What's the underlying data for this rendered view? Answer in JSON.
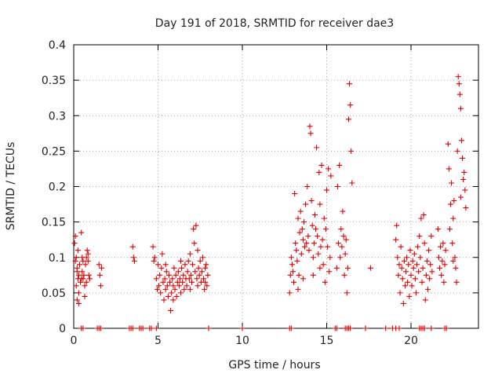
{
  "chart_data": {
    "type": "scatter",
    "title": "Day 191 of 2018, SRMTID for receiver dae3",
    "xlabel": "GPS time / hours",
    "ylabel": "SRMTID / TECUs",
    "xlim": [
      0,
      24
    ],
    "ylim": [
      0,
      0.4
    ],
    "grid": true,
    "marker": "+",
    "color": "#e00000",
    "x_ticks": [
      0,
      5,
      10,
      15,
      20
    ],
    "x_tick_labels": [
      "0",
      "5",
      "10",
      "15",
      "20"
    ],
    "y_ticks": [
      0,
      0.05,
      0.1,
      0.15,
      0.2,
      0.25,
      0.3,
      0.35,
      0.4
    ],
    "y_tick_labels": [
      "0",
      "0.05",
      "0.1",
      "0.15",
      "0.2",
      "0.25",
      "0.3",
      "0.35",
      "0.4"
    ],
    "series": [
      {
        "name": "dae3",
        "points": [
          [
            0.05,
            0.12
          ],
          [
            0.1,
            0.095
          ],
          [
            0.1,
            0.13
          ],
          [
            0.15,
            0.06
          ],
          [
            0.15,
            0.1
          ],
          [
            0.2,
            0.08
          ],
          [
            0.2,
            0.04
          ],
          [
            0.25,
            0.07
          ],
          [
            0.25,
            0.11
          ],
          [
            0.3,
            0.05
          ],
          [
            0.3,
            0.075
          ],
          [
            0.35,
            0.09
          ],
          [
            0.4,
            0.065
          ],
          [
            0.45,
            0.135
          ],
          [
            0.5,
            0.08
          ],
          [
            0.5,
            0.1
          ],
          [
            0.55,
            0.07
          ],
          [
            0.6,
            0.075
          ],
          [
            0.65,
            0.06
          ],
          [
            0.7,
            0.09
          ],
          [
            0.75,
            0.1
          ],
          [
            0.8,
            0.11
          ],
          [
            0.85,
            0.095
          ],
          [
            0.9,
            0.075
          ],
          [
            0.95,
            0.07
          ],
          [
            0.3,
            0.035
          ],
          [
            0.2,
            0.085
          ],
          [
            0.65,
            0.045
          ],
          [
            0.45,
            0.07
          ],
          [
            0.55,
            0.095
          ],
          [
            0.75,
            0.065
          ],
          [
            0.85,
            0.105
          ],
          [
            1.5,
            0.09
          ],
          [
            1.55,
            0.075
          ],
          [
            1.6,
            0.06
          ],
          [
            1.65,
            0.085
          ],
          [
            3.5,
            0.115
          ],
          [
            3.55,
            0.1
          ],
          [
            3.6,
            0.095
          ],
          [
            4.7,
            0.115
          ],
          [
            4.75,
            0.095
          ],
          [
            4.8,
            0.1
          ],
          [
            4.9,
            0.07
          ],
          [
            4.95,
            0.055
          ],
          [
            5.0,
            0.09
          ],
          [
            5.05,
            0.06
          ],
          [
            5.1,
            0.075
          ],
          [
            5.15,
            0.05
          ],
          [
            5.2,
            0.085
          ],
          [
            5.25,
            0.105
          ],
          [
            5.3,
            0.065
          ],
          [
            5.35,
            0.04
          ],
          [
            5.4,
            0.07
          ],
          [
            5.45,
            0.055
          ],
          [
            5.5,
            0.08
          ],
          [
            5.55,
            0.06
          ],
          [
            5.6,
            0.045
          ],
          [
            5.65,
            0.075
          ],
          [
            5.7,
            0.065
          ],
          [
            5.75,
            0.025
          ],
          [
            5.8,
            0.05
          ],
          [
            5.85,
            0.07
          ],
          [
            5.9,
            0.06
          ],
          [
            5.95,
            0.085
          ],
          [
            6.0,
            0.055
          ],
          [
            6.05,
            0.075
          ],
          [
            6.1,
            0.045
          ],
          [
            6.15,
            0.065
          ],
          [
            6.2,
            0.08
          ],
          [
            6.25,
            0.06
          ],
          [
            6.3,
            0.07
          ],
          [
            6.35,
            0.05
          ],
          [
            6.4,
            0.085
          ],
          [
            6.45,
            0.065
          ],
          [
            6.5,
            0.075
          ],
          [
            6.55,
            0.055
          ],
          [
            6.6,
            0.09
          ],
          [
            6.65,
            0.07
          ],
          [
            6.7,
            0.06
          ],
          [
            6.75,
            0.08
          ],
          [
            6.8,
            0.095
          ],
          [
            6.85,
            0.07
          ],
          [
            6.9,
            0.105
          ],
          [
            6.95,
            0.075
          ],
          [
            7.0,
            0.065
          ],
          [
            7.05,
            0.09
          ],
          [
            7.1,
            0.14
          ],
          [
            7.15,
            0.12
          ],
          [
            7.2,
            0.08
          ],
          [
            7.25,
            0.145
          ],
          [
            7.3,
            0.07
          ],
          [
            7.35,
            0.06
          ],
          [
            7.4,
            0.085
          ],
          [
            7.45,
            0.075
          ],
          [
            7.5,
            0.095
          ],
          [
            7.55,
            0.065
          ],
          [
            7.6,
            0.08
          ],
          [
            7.65,
            0.1
          ],
          [
            7.7,
            0.07
          ],
          [
            7.75,
            0.055
          ],
          [
            7.8,
            0.085
          ],
          [
            7.85,
            0.09
          ],
          [
            7.9,
            0.06
          ],
          [
            7.95,
            0.075
          ],
          [
            5.45,
            0.09
          ],
          [
            5.9,
            0.04
          ],
          [
            6.35,
            0.095
          ],
          [
            6.9,
            0.055
          ],
          [
            7.35,
            0.11
          ],
          [
            7.8,
            0.065
          ],
          [
            12.8,
            0.05
          ],
          [
            12.85,
            0.075
          ],
          [
            12.9,
            0.1
          ],
          [
            12.95,
            0.09
          ],
          [
            13.0,
            0.08
          ],
          [
            13.05,
            0.065
          ],
          [
            13.1,
            0.19
          ],
          [
            13.15,
            0.12
          ],
          [
            13.2,
            0.11
          ],
          [
            13.25,
            0.095
          ],
          [
            13.3,
            0.155
          ],
          [
            13.35,
            0.075
          ],
          [
            13.4,
            0.135
          ],
          [
            13.45,
            0.165
          ],
          [
            13.5,
            0.105
          ],
          [
            13.55,
            0.14
          ],
          [
            13.6,
            0.125
          ],
          [
            13.65,
            0.15
          ],
          [
            13.7,
            0.115
          ],
          [
            13.75,
            0.175
          ],
          [
            13.8,
            0.12
          ],
          [
            13.85,
            0.2
          ],
          [
            13.9,
            0.13
          ],
          [
            13.95,
            0.11
          ],
          [
            14.0,
            0.285
          ],
          [
            14.05,
            0.275
          ],
          [
            14.1,
            0.18
          ],
          [
            14.15,
            0.145
          ],
          [
            14.2,
            0.1
          ],
          [
            14.25,
            0.12
          ],
          [
            14.3,
            0.16
          ],
          [
            14.35,
            0.14
          ],
          [
            14.4,
            0.255
          ],
          [
            14.45,
            0.13
          ],
          [
            14.5,
            0.105
          ],
          [
            14.55,
            0.22
          ],
          [
            14.6,
            0.175
          ],
          [
            14.65,
            0.115
          ],
          [
            14.7,
            0.23
          ],
          [
            14.75,
            0.125
          ],
          [
            14.8,
            0.09
          ],
          [
            14.85,
            0.155
          ],
          [
            14.9,
            0.065
          ],
          [
            14.95,
            0.14
          ],
          [
            15.0,
            0.195
          ],
          [
            15.05,
            0.115
          ],
          [
            15.1,
            0.225
          ],
          [
            15.15,
            0.08
          ],
          [
            15.2,
            0.1
          ],
          [
            15.25,
            0.215
          ],
          [
            13.3,
            0.055
          ],
          [
            13.6,
            0.07
          ],
          [
            14.2,
            0.075
          ],
          [
            14.6,
            0.085
          ],
          [
            15.6,
            0.085
          ],
          [
            15.65,
            0.2
          ],
          [
            15.7,
            0.12
          ],
          [
            15.75,
            0.23
          ],
          [
            15.8,
            0.1
          ],
          [
            15.85,
            0.14
          ],
          [
            15.9,
            0.115
          ],
          [
            15.95,
            0.165
          ],
          [
            16.0,
            0.13
          ],
          [
            16.05,
            0.075
          ],
          [
            16.1,
            0.105
          ],
          [
            16.15,
            0.125
          ],
          [
            16.2,
            0.05
          ],
          [
            16.25,
            0.085
          ],
          [
            16.3,
            0.295
          ],
          [
            16.35,
            0.345
          ],
          [
            16.4,
            0.315
          ],
          [
            16.45,
            0.25
          ],
          [
            16.5,
            0.205
          ],
          [
            17.6,
            0.085
          ],
          [
            19.1,
            0.125
          ],
          [
            19.15,
            0.145
          ],
          [
            19.2,
            0.1
          ],
          [
            19.25,
            0.075
          ],
          [
            19.3,
            0.09
          ],
          [
            19.35,
            0.05
          ],
          [
            19.4,
            0.115
          ],
          [
            19.45,
            0.085
          ],
          [
            19.5,
            0.07
          ],
          [
            19.55,
            0.035
          ],
          [
            19.6,
            0.095
          ],
          [
            19.65,
            0.06
          ],
          [
            19.7,
            0.08
          ],
          [
            19.75,
            0.1
          ],
          [
            19.8,
            0.065
          ],
          [
            19.85,
            0.09
          ],
          [
            19.9,
            0.045
          ],
          [
            19.95,
            0.11
          ],
          [
            20.0,
            0.075
          ],
          [
            20.05,
            0.06
          ],
          [
            20.1,
            0.095
          ],
          [
            20.15,
            0.085
          ],
          [
            20.2,
            0.105
          ],
          [
            20.25,
            0.07
          ],
          [
            20.3,
            0.05
          ],
          [
            20.35,
            0.09
          ],
          [
            20.4,
            0.115
          ],
          [
            20.45,
            0.08
          ],
          [
            20.5,
            0.13
          ],
          [
            20.55,
            0.1
          ],
          [
            20.6,
            0.155
          ],
          [
            20.65,
            0.065
          ],
          [
            20.7,
            0.085
          ],
          [
            20.75,
            0.16
          ],
          [
            20.8,
            0.12
          ],
          [
            20.85,
            0.04
          ],
          [
            20.9,
            0.075
          ],
          [
            20.95,
            0.095
          ],
          [
            21.0,
            0.055
          ],
          [
            21.05,
            0.11
          ],
          [
            21.1,
            0.07
          ],
          [
            21.15,
            0.09
          ],
          [
            21.2,
            0.13
          ],
          [
            21.25,
            0.08
          ],
          [
            21.6,
            0.14
          ],
          [
            21.65,
            0.1
          ],
          [
            21.7,
            0.085
          ],
          [
            21.75,
            0.115
          ],
          [
            21.8,
            0.075
          ],
          [
            21.85,
            0.095
          ],
          [
            21.9,
            0.12
          ],
          [
            21.95,
            0.065
          ],
          [
            22.0,
            0.09
          ],
          [
            22.05,
            0.11
          ],
          [
            22.2,
            0.26
          ],
          [
            22.25,
            0.225
          ],
          [
            22.3,
            0.14
          ],
          [
            22.35,
            0.175
          ],
          [
            22.4,
            0.205
          ],
          [
            22.45,
            0.12
          ],
          [
            22.5,
            0.095
          ],
          [
            22.55,
            0.18
          ],
          [
            22.6,
            0.1
          ],
          [
            22.65,
            0.085
          ],
          [
            22.7,
            0.065
          ],
          [
            22.75,
            0.25
          ],
          [
            22.8,
            0.355
          ],
          [
            22.85,
            0.345
          ],
          [
            22.9,
            0.33
          ],
          [
            22.95,
            0.31
          ],
          [
            23.0,
            0.265
          ],
          [
            23.05,
            0.24
          ],
          [
            23.1,
            0.21
          ],
          [
            23.15,
            0.22
          ],
          [
            23.2,
            0.195
          ],
          [
            23.25,
            0.17
          ],
          [
            22.5,
            0.155
          ],
          [
            22.95,
            0.185
          ],
          [
            0.45,
            0.0
          ],
          [
            0.55,
            0.0
          ],
          [
            1.4,
            0.0
          ],
          [
            1.5,
            0.0
          ],
          [
            1.6,
            0.0
          ],
          [
            3.3,
            0.0
          ],
          [
            3.4,
            0.0
          ],
          [
            3.5,
            0.0
          ],
          [
            3.9,
            0.0
          ],
          [
            4.0,
            0.0
          ],
          [
            4.1,
            0.0
          ],
          [
            4.5,
            0.0
          ],
          [
            4.6,
            0.0
          ],
          [
            4.9,
            0.0
          ],
          [
            8.0,
            0.0
          ],
          [
            10.0,
            0.0
          ],
          [
            12.8,
            0.0
          ],
          [
            12.9,
            0.0
          ],
          [
            15.5,
            0.0
          ],
          [
            15.6,
            0.0
          ],
          [
            16.1,
            0.0
          ],
          [
            16.2,
            0.0
          ],
          [
            16.3,
            0.0
          ],
          [
            16.4,
            0.0
          ],
          [
            17.3,
            0.0
          ],
          [
            18.5,
            0.0
          ],
          [
            18.9,
            0.0
          ],
          [
            19.1,
            0.0
          ],
          [
            19.3,
            0.0
          ],
          [
            20.5,
            0.0
          ],
          [
            20.6,
            0.0
          ],
          [
            20.7,
            0.0
          ],
          [
            20.8,
            0.0
          ],
          [
            21.2,
            0.0
          ],
          [
            22.0,
            0.0
          ],
          [
            22.1,
            0.0
          ]
        ]
      }
    ]
  }
}
